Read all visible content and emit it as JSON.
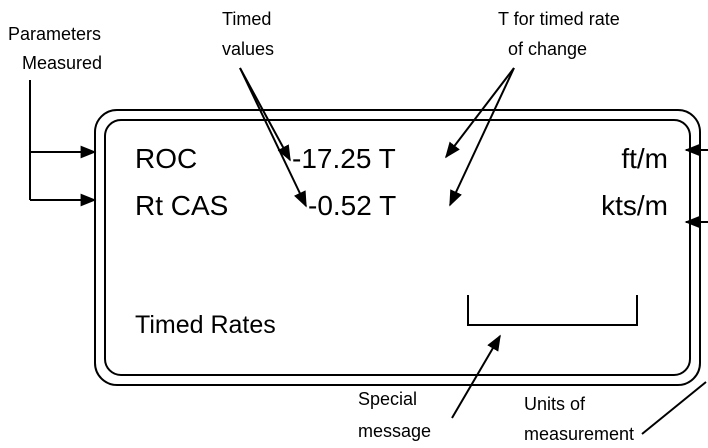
{
  "annotations": {
    "parameters": [
      "Parameters",
      "Measured"
    ],
    "timed_values": [
      "Timed",
      "values"
    ],
    "t_marker": [
      "T for timed rate",
      "of change"
    ],
    "special_message": [
      "Special",
      "message"
    ],
    "units": [
      "Units of",
      "measurement"
    ]
  },
  "display": {
    "rows": [
      [
        "ROC",
        "-17.25 T",
        "ft/m"
      ],
      [
        "Rt CAS",
        "-0.52 T",
        "kts/m"
      ]
    ],
    "mode": "Timed Rates"
  }
}
